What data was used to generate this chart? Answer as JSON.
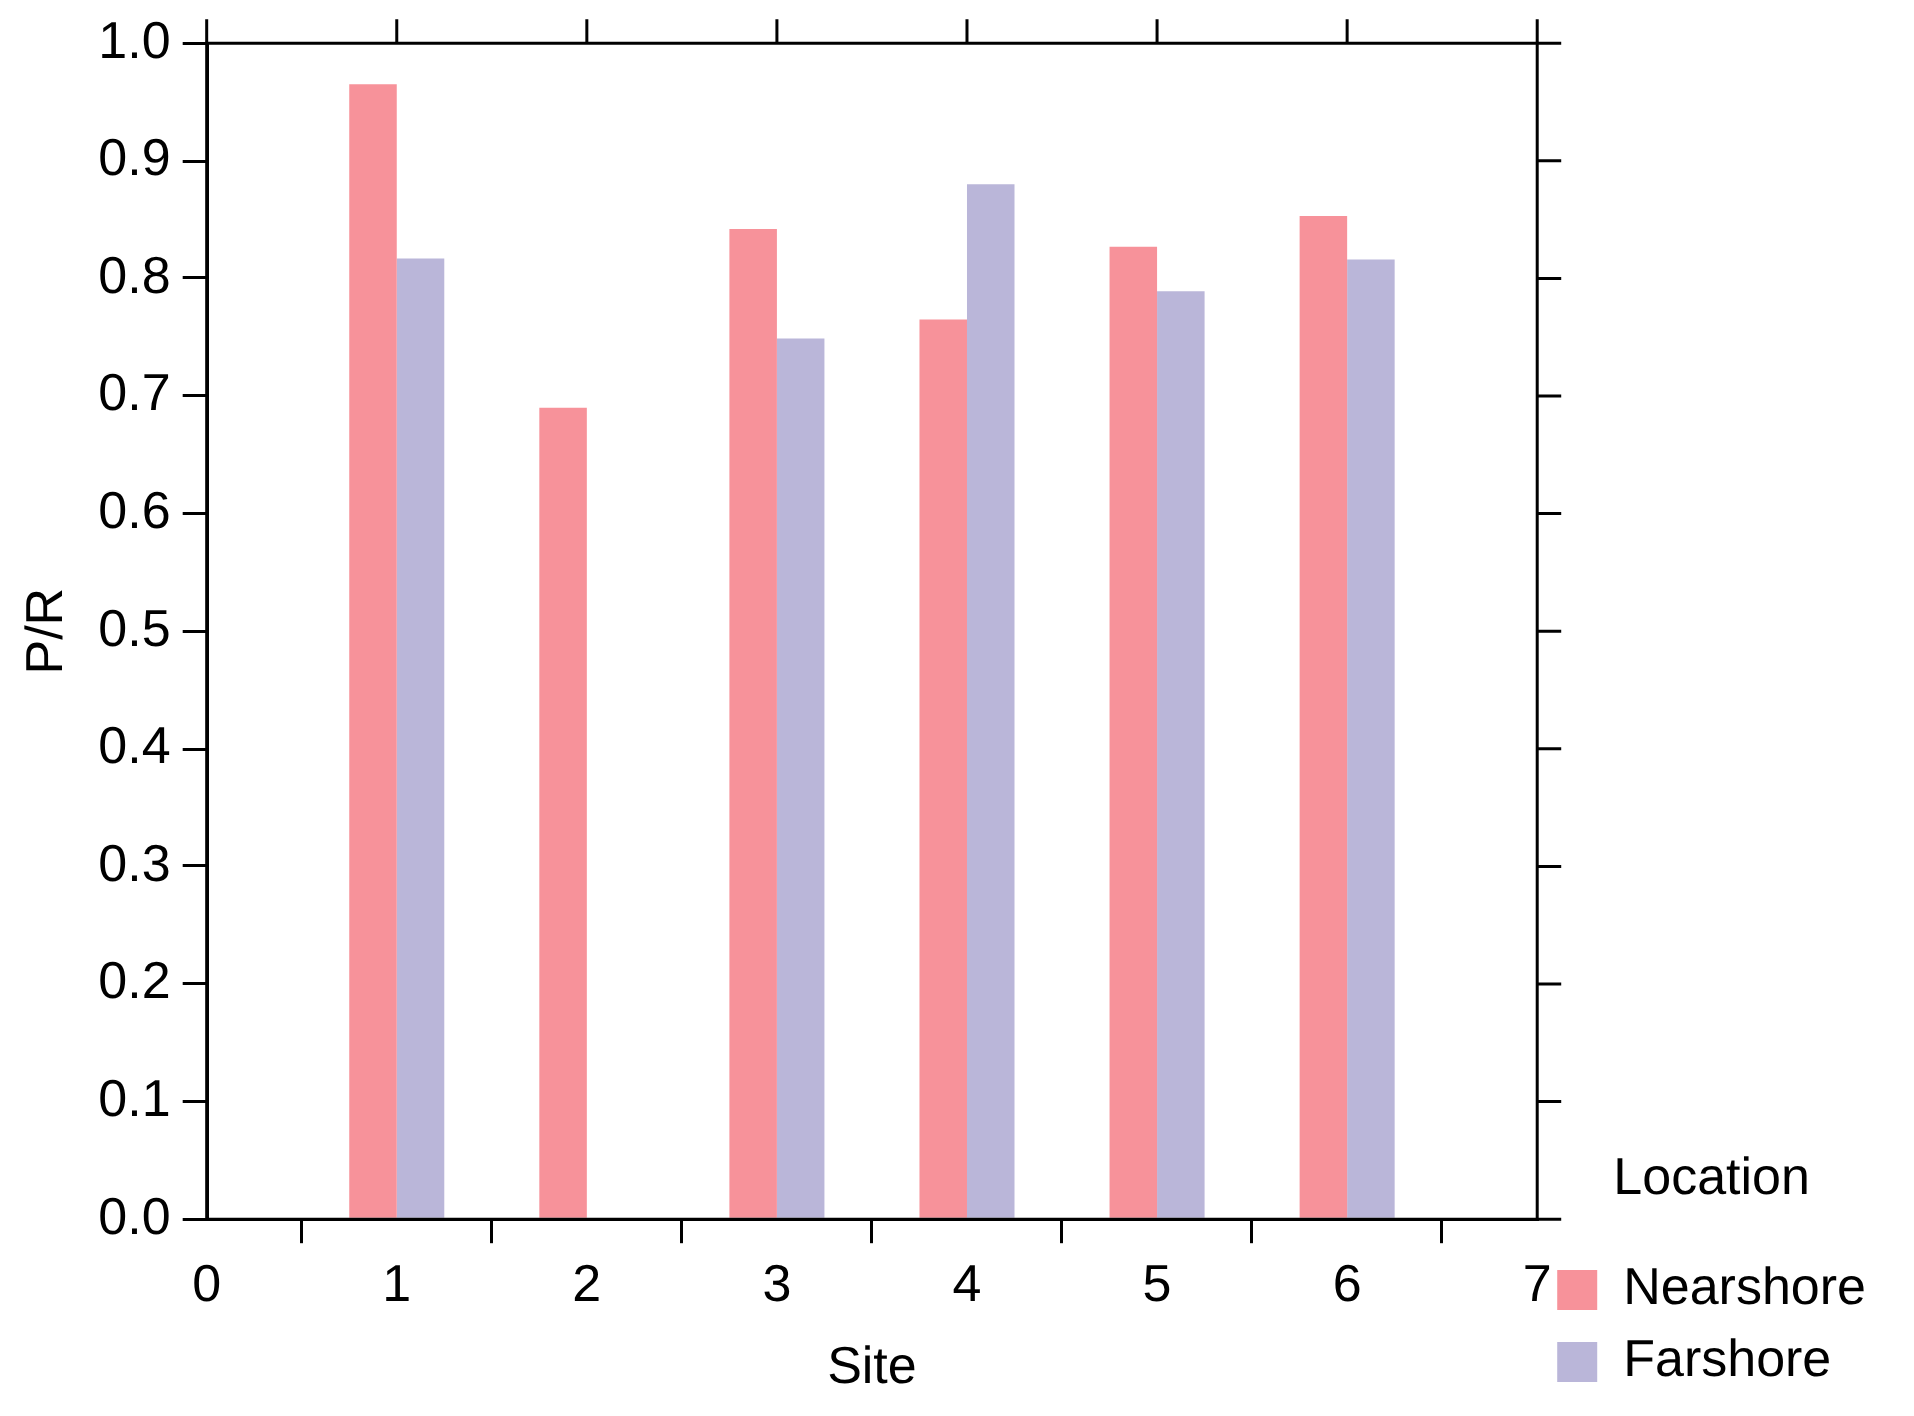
{
  "chart_data": {
    "type": "bar",
    "xlabel": "Site",
    "ylabel": "P/R",
    "legend_title": "Location",
    "legend": "right",
    "x": [
      1,
      2,
      3,
      4,
      5,
      6
    ],
    "series": [
      {
        "name": "Nearshore",
        "color": "#f7929a",
        "values": [
          0.965,
          0.69,
          0.842,
          0.765,
          0.827,
          0.853
        ]
      },
      {
        "name": "Farshore",
        "color": "#bab6d9",
        "values": [
          0.817,
          null,
          0.749,
          0.88,
          0.789,
          0.816
        ]
      }
    ],
    "xlim": [
      0,
      7
    ],
    "xticks": [
      0,
      1,
      2,
      3,
      4,
      5,
      6,
      7
    ],
    "ylim": [
      0,
      1
    ],
    "yticks": [
      {
        "value": 0,
        "label": "0.0"
      },
      0.1,
      0.2,
      0.3,
      0.4,
      0.5,
      0.6,
      0.7,
      0.8,
      0.9,
      {
        "value": 1,
        "label": "1.0"
      }
    ],
    "grid": false
  }
}
